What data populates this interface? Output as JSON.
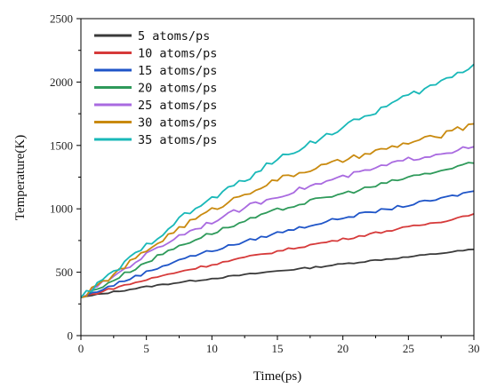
{
  "chart_data": {
    "type": "line",
    "xlabel": "Time(ps)",
    "ylabel": "Temperature(K)",
    "xlim": [
      0,
      30
    ],
    "ylim": [
      0,
      2500
    ],
    "xticks": [
      0,
      5,
      10,
      15,
      20,
      25,
      30
    ],
    "yticks": [
      0,
      500,
      1000,
      1500,
      2000,
      2500
    ],
    "legend_position": "top-left",
    "grid": false,
    "x": [
      0,
      2.5,
      5,
      7.5,
      10,
      12.5,
      15,
      17.5,
      20,
      22.5,
      25,
      27.5,
      30
    ],
    "series": [
      {
        "name": "5 atoms/ps",
        "color": "#3a3a3a",
        "values": [
          300,
          345,
          385,
          420,
          450,
          480,
          510,
          535,
          565,
          595,
          620,
          650,
          680
        ]
      },
      {
        "name": "10 atoms/ps",
        "color": "#d63a3a",
        "values": [
          300,
          375,
          440,
          505,
          560,
          615,
          665,
          715,
          760,
          810,
          855,
          900,
          960
        ]
      },
      {
        "name": "15 atoms/ps",
        "color": "#1f55c8",
        "values": [
          300,
          400,
          500,
          600,
          670,
          740,
          810,
          870,
          930,
          980,
          1030,
          1080,
          1140
        ]
      },
      {
        "name": "20 atoms/ps",
        "color": "#2e9a5a",
        "values": [
          300,
          440,
          580,
          710,
          810,
          900,
          990,
          1060,
          1120,
          1180,
          1250,
          1300,
          1360
        ]
      },
      {
        "name": "25 atoms/ps",
        "color": "#a96ae0",
        "values": [
          300,
          470,
          640,
          790,
          900,
          1010,
          1100,
          1180,
          1250,
          1320,
          1390,
          1440,
          1490
        ]
      },
      {
        "name": "30 atoms/ps",
        "color": "#c98a0f",
        "values": [
          300,
          480,
          670,
          850,
          990,
          1120,
          1230,
          1310,
          1380,
          1450,
          1520,
          1580,
          1670
        ]
      },
      {
        "name": "35 atoms/ps",
        "color": "#19b8b8",
        "values": [
          300,
          500,
          710,
          920,
          1080,
          1230,
          1390,
          1520,
          1640,
          1770,
          1890,
          2000,
          2140
        ]
      }
    ]
  }
}
